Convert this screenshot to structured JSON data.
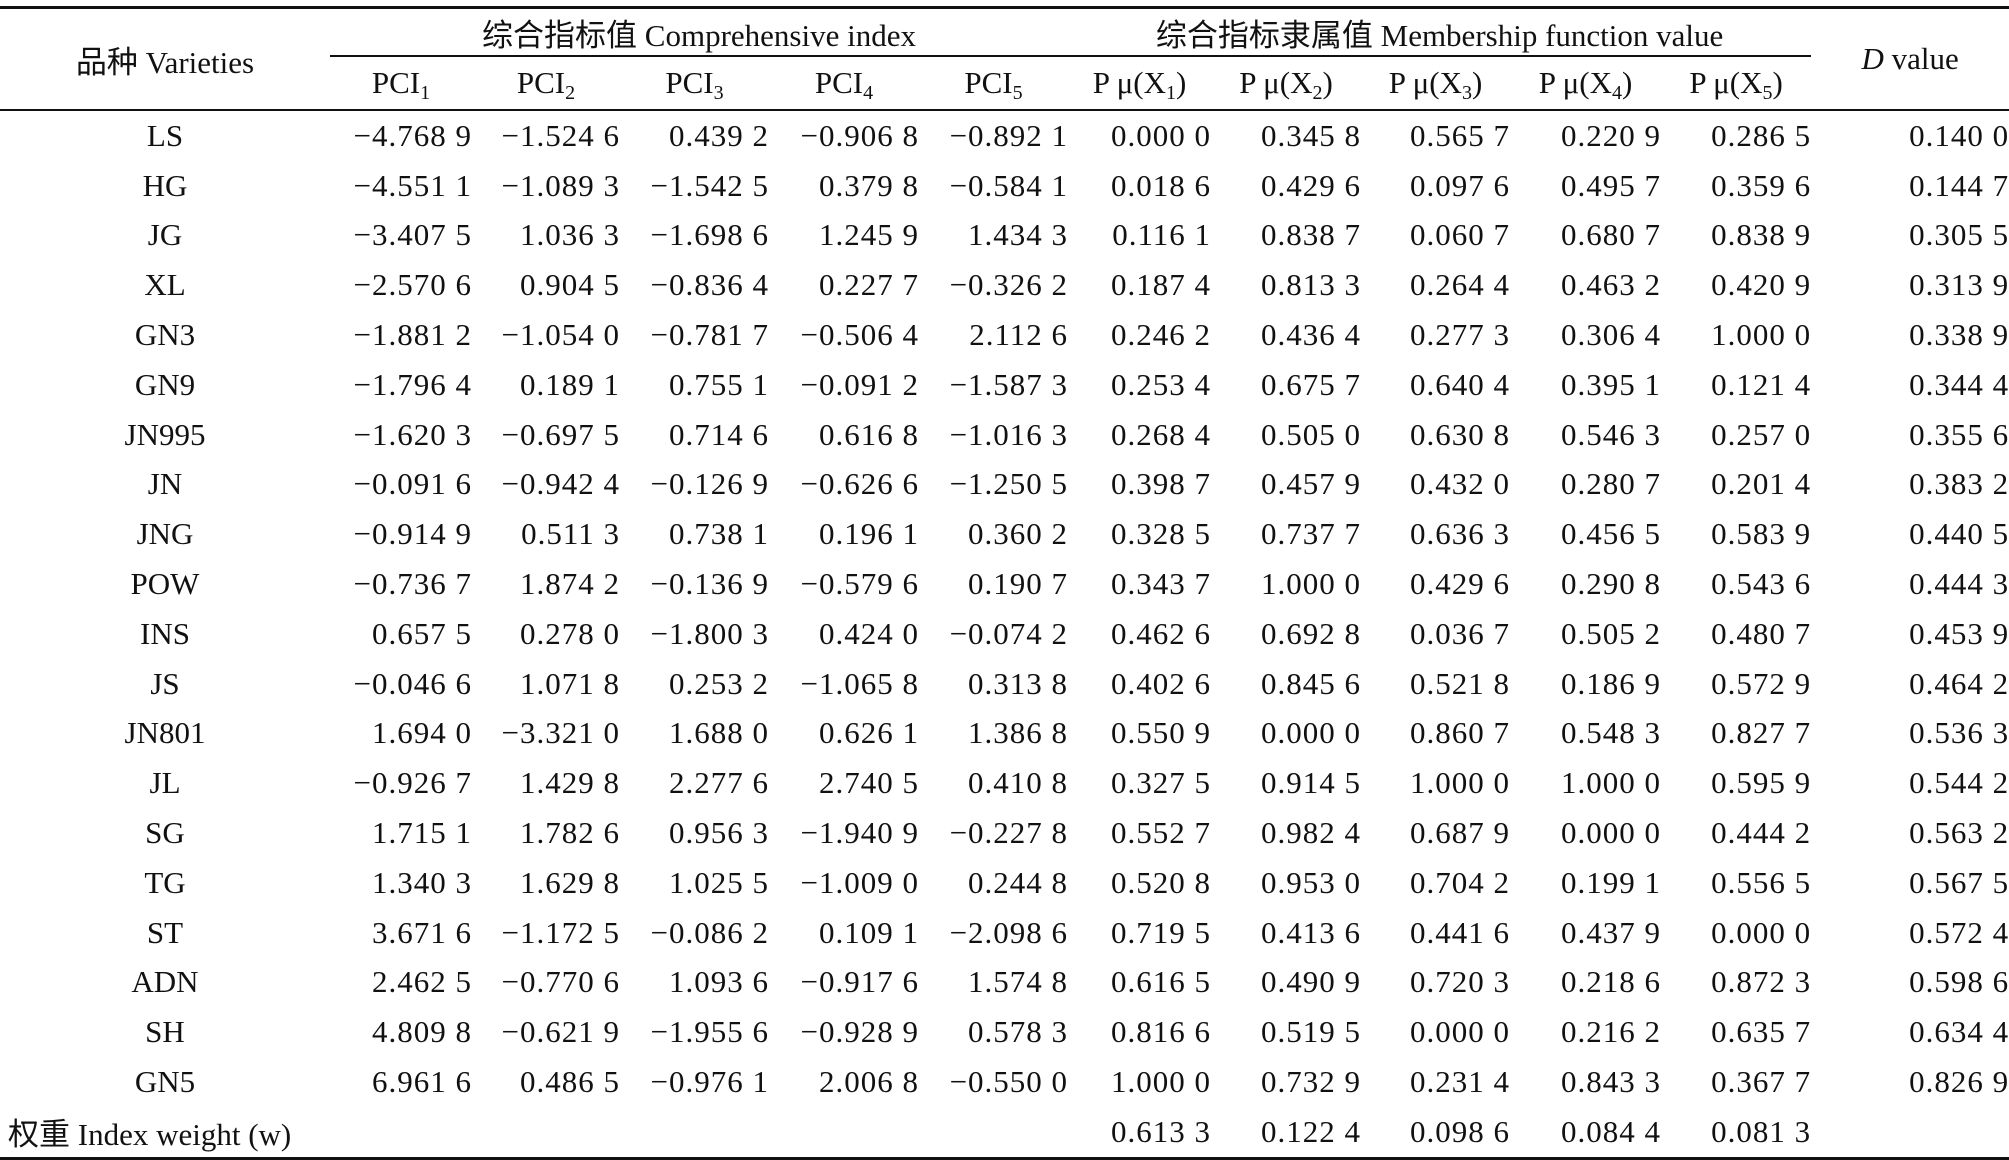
{
  "header": {
    "varieties_label": "品种 Varieties",
    "comprehensive_index_label": "综合指标值 Comprehensive index",
    "membership_label": "综合指标隶属值 Membership function value",
    "d_value_italic": "D",
    "d_value_rest": " value",
    "pci_prefix": "PCI",
    "mu_prefix": "P μ(X",
    "mu_suffix": ")",
    "indices": [
      "1",
      "2",
      "3",
      "4",
      "5"
    ]
  },
  "rows": [
    {
      "name": "LS",
      "pci": [
        "−4.768 9",
        "−1.524 6",
        "0.439 2",
        "−0.906 8",
        "−0.892 1"
      ],
      "mu": [
        "0.000 0",
        "0.345 8",
        "0.565 7",
        "0.220 9",
        "0.286 5"
      ],
      "d": "0.140 0"
    },
    {
      "name": "HG",
      "pci": [
        "−4.551 1",
        "−1.089 3",
        "−1.542 5",
        "0.379 8",
        "−0.584 1"
      ],
      "mu": [
        "0.018 6",
        "0.429 6",
        "0.097 6",
        "0.495 7",
        "0.359 6"
      ],
      "d": "0.144 7"
    },
    {
      "name": "JG",
      "pci": [
        "−3.407 5",
        "1.036 3",
        "−1.698 6",
        "1.245 9",
        "1.434 3"
      ],
      "mu": [
        "0.116 1",
        "0.838 7",
        "0.060 7",
        "0.680 7",
        "0.838 9"
      ],
      "d": "0.305 5"
    },
    {
      "name": "XL",
      "pci": [
        "−2.570 6",
        "0.904 5",
        "−0.836 4",
        "0.227 7",
        "−0.326 2"
      ],
      "mu": [
        "0.187 4",
        "0.813 3",
        "0.264 4",
        "0.463 2",
        "0.420 9"
      ],
      "d": "0.313 9"
    },
    {
      "name": "GN3",
      "pci": [
        "−1.881 2",
        "−1.054 0",
        "−0.781 7",
        "−0.506 4",
        "2.112 6"
      ],
      "mu": [
        "0.246 2",
        "0.436 4",
        "0.277 3",
        "0.306 4",
        "1.000 0"
      ],
      "d": "0.338 9"
    },
    {
      "name": "GN9",
      "pci": [
        "−1.796 4",
        "0.189 1",
        "0.755 1",
        "−0.091 2",
        "−1.587 3"
      ],
      "mu": [
        "0.253 4",
        "0.675 7",
        "0.640 4",
        "0.395 1",
        "0.121 4"
      ],
      "d": "0.344 4"
    },
    {
      "name": "JN995",
      "pci": [
        "−1.620 3",
        "−0.697 5",
        "0.714 6",
        "0.616 8",
        "−1.016 3"
      ],
      "mu": [
        "0.268 4",
        "0.505 0",
        "0.630 8",
        "0.546 3",
        "0.257 0"
      ],
      "d": "0.355 6"
    },
    {
      "name": "JN",
      "pci": [
        "−0.091 6",
        "−0.942 4",
        "−0.126 9",
        "−0.626 6",
        "−1.250 5"
      ],
      "mu": [
        "0.398 7",
        "0.457 9",
        "0.432 0",
        "0.280 7",
        "0.201 4"
      ],
      "d": "0.383 2"
    },
    {
      "name": "JNG",
      "pci": [
        "−0.914 9",
        "0.511 3",
        "0.738 1",
        "0.196 1",
        "0.360 2"
      ],
      "mu": [
        "0.328 5",
        "0.737 7",
        "0.636 3",
        "0.456 5",
        "0.583 9"
      ],
      "d": "0.440 5"
    },
    {
      "name": "POW",
      "pci": [
        "−0.736 7",
        "1.874 2",
        "−0.136 9",
        "−0.579 6",
        "0.190 7"
      ],
      "mu": [
        "0.343 7",
        "1.000 0",
        "0.429 6",
        "0.290 8",
        "0.543 6"
      ],
      "d": "0.444 3"
    },
    {
      "name": "INS",
      "pci": [
        "0.657 5",
        "0.278 0",
        "−1.800 3",
        "0.424 0",
        "−0.074 2"
      ],
      "mu": [
        "0.462 6",
        "0.692 8",
        "0.036 7",
        "0.505 2",
        "0.480 7"
      ],
      "d": "0.453 9"
    },
    {
      "name": "JS",
      "pci": [
        "−0.046 6",
        "1.071 8",
        "0.253 2",
        "−1.065 8",
        "0.313 8"
      ],
      "mu": [
        "0.402 6",
        "0.845 6",
        "0.521 8",
        "0.186 9",
        "0.572 9"
      ],
      "d": "0.464 2"
    },
    {
      "name": "JN801",
      "pci": [
        "1.694 0",
        "−3.321 0",
        "1.688 0",
        "0.626 1",
        "1.386 8"
      ],
      "mu": [
        "0.550 9",
        "0.000 0",
        "0.860 7",
        "0.548 3",
        "0.827 7"
      ],
      "d": "0.536 3"
    },
    {
      "name": "JL",
      "pci": [
        "−0.926 7",
        "1.429 8",
        "2.277 6",
        "2.740 5",
        "0.410 8"
      ],
      "mu": [
        "0.327 5",
        "0.914 5",
        "1.000 0",
        "1.000 0",
        "0.595 9"
      ],
      "d": "0.544 2"
    },
    {
      "name": "SG",
      "pci": [
        "1.715 1",
        "1.782 6",
        "0.956 3",
        "−1.940 9",
        "−0.227 8"
      ],
      "mu": [
        "0.552 7",
        "0.982 4",
        "0.687 9",
        "0.000 0",
        "0.444 2"
      ],
      "d": "0.563 2"
    },
    {
      "name": "TG",
      "pci": [
        "1.340 3",
        "1.629 8",
        "1.025 5",
        "−1.009 0",
        "0.244 8"
      ],
      "mu": [
        "0.520 8",
        "0.953 0",
        "0.704 2",
        "0.199 1",
        "0.556 5"
      ],
      "d": "0.567 5"
    },
    {
      "name": "ST",
      "pci": [
        "3.671 6",
        "−1.172 5",
        "−0.086 2",
        "0.109 1",
        "−2.098 6"
      ],
      "mu": [
        "0.719 5",
        "0.413 6",
        "0.441 6",
        "0.437 9",
        "0.000 0"
      ],
      "d": "0.572 4"
    },
    {
      "name": "ADN",
      "pci": [
        "2.462 5",
        "−0.770 6",
        "1.093 6",
        "−0.917 6",
        "1.574 8"
      ],
      "mu": [
        "0.616 5",
        "0.490 9",
        "0.720 3",
        "0.218 6",
        "0.872 3"
      ],
      "d": "0.598 6"
    },
    {
      "name": "SH",
      "pci": [
        "4.809 8",
        "−0.621 9",
        "−1.955 6",
        "−0.928 9",
        "0.578 3"
      ],
      "mu": [
        "0.816 6",
        "0.519 5",
        "0.000 0",
        "0.216 2",
        "0.635 7"
      ],
      "d": "0.634 4"
    },
    {
      "name": "GN5",
      "pci": [
        "6.961 6",
        "0.486 5",
        "−0.976 1",
        "2.006 8",
        "−0.550 0"
      ],
      "mu": [
        "1.000 0",
        "0.732 9",
        "0.231 4",
        "0.843 3",
        "0.367 7"
      ],
      "d": "0.826 9"
    }
  ],
  "weight_row": {
    "label": "权重 Index weight (w)",
    "values": [
      "0.613 3",
      "0.122 4",
      "0.098 6",
      "0.084 4",
      "0.081 3"
    ]
  }
}
